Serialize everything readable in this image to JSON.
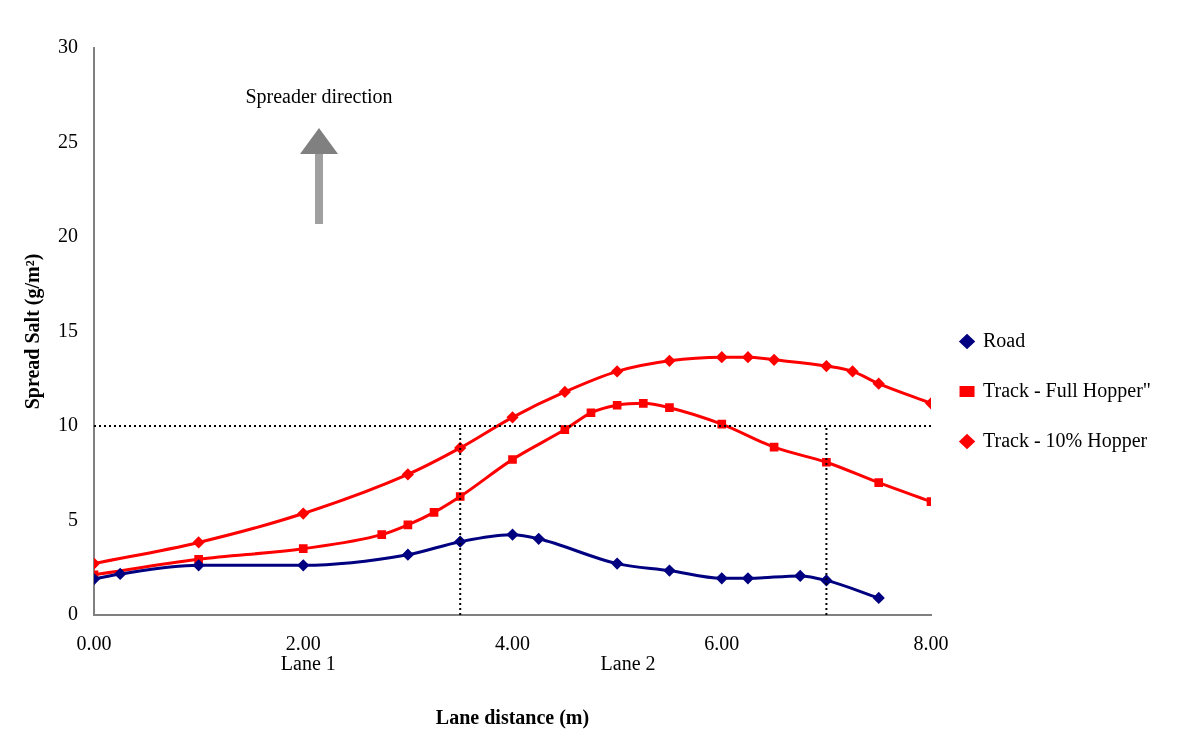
{
  "chart_data": {
    "type": "line",
    "xlabel": "Lane distance (m)",
    "ylabel": "Spread Salt (g/m²)",
    "xlim": [
      0,
      8
    ],
    "xticks": [
      {
        "value": 0,
        "label": "0.00"
      },
      {
        "value": 2,
        "label": "2.00"
      },
      {
        "value": 4,
        "label": "4.00"
      },
      {
        "value": 6,
        "label": "6.00"
      },
      {
        "value": 8,
        "label": "8.00"
      }
    ],
    "ylim": [
      0,
      30
    ],
    "yticks": [
      0,
      5,
      10,
      15,
      20,
      25,
      30
    ],
    "grid": false,
    "legend": "right",
    "line_style": "solid",
    "series": [
      {
        "name": "Road",
        "color": "#000080",
        "marker": "diamond",
        "x": [
          0,
          0.25,
          1,
          2,
          3,
          3.5,
          4,
          4.25,
          5,
          5.5,
          6,
          6.25,
          6.75,
          7,
          7.5
        ],
        "values": [
          1.9,
          2.17,
          2.63,
          2.63,
          3.19,
          3.88,
          4.25,
          4.03,
          2.72,
          2.35,
          1.94,
          1.94,
          2.07,
          1.83,
          0.9
        ]
      },
      {
        "name": "Track - Full Hopper\"",
        "color": "#ff0000",
        "marker": "square",
        "x": [
          0,
          1,
          2,
          2.75,
          3,
          3.25,
          3.5,
          4,
          4.5,
          4.75,
          5,
          5.25,
          5.5,
          6,
          6.5,
          7,
          7.5,
          8
        ],
        "values": [
          2.13,
          2.95,
          3.51,
          4.25,
          4.77,
          5.43,
          6.27,
          8.23,
          9.81,
          10.7,
          11.1,
          11.2,
          10.97,
          10.1,
          8.88,
          8.08,
          7.0,
          6.0
        ]
      },
      {
        "name": "Track - 10% Hopper",
        "color": "#ff0000",
        "marker": "diamond",
        "x": [
          0,
          1,
          2,
          3,
          3.5,
          4,
          4.5,
          5,
          5.5,
          6,
          6.25,
          6.5,
          7,
          7.25,
          7.5,
          8
        ],
        "values": [
          2.72,
          3.84,
          5.37,
          7.44,
          8.84,
          10.46,
          11.8,
          12.89,
          13.45,
          13.64,
          13.64,
          13.5,
          13.17,
          12.89,
          12.24,
          11.2
        ]
      }
    ],
    "ref_lines": [
      {
        "axis": "y",
        "value": 10,
        "color": "#000000",
        "line_style": "dotted"
      },
      {
        "axis": "x",
        "value": 3.5,
        "color": "#000000",
        "line_style": "dotted"
      },
      {
        "axis": "x",
        "value": 7,
        "color": "#000000",
        "line_style": "dotted"
      }
    ],
    "annotations": [
      "Spreader direction",
      "Lane 1",
      "Lane 2"
    ]
  }
}
